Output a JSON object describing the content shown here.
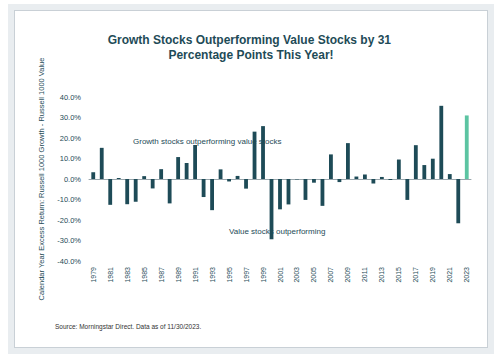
{
  "chart_data": {
    "type": "bar",
    "title": "Growth Stocks Outperforming Value Stocks by 31 Percentage Points This Year!",
    "y_label": "Calendar Year Excess Return: Russell 1000 Growth - Russell 1000 Value",
    "annotations": [
      "Growth stocks outperforming value stocks",
      "Value stocks outperforming"
    ],
    "source": "Source: Morningstar Direct. Data as of 11/30/2023.",
    "categories": [
      "1979",
      null,
      "1981",
      null,
      "1983",
      null,
      "1985",
      null,
      "1987",
      null,
      "1989",
      null,
      "1991",
      null,
      "1993",
      null,
      "1995",
      null,
      "1997",
      null,
      "1999",
      null,
      "2001",
      null,
      "2003",
      null,
      "2005",
      null,
      "2007",
      null,
      "2009",
      null,
      "2011",
      null,
      "2013",
      null,
      "2015",
      null,
      "2017",
      null,
      "2019",
      null,
      "2021",
      null,
      "2023"
    ],
    "values": [
      3.3,
      15.2,
      -12.6,
      0.5,
      -12.3,
      -11.1,
      1.4,
      -4.6,
      4.8,
      -11.9,
      10.7,
      7.8,
      16.6,
      -8.8,
      -15.2,
      4.7,
      -1.2,
      1.5,
      -4.7,
      23.1,
      25.8,
      -29.4,
      -14.8,
      -12.4,
      -0.2,
      -10.2,
      -1.8,
      -13.1,
      12.0,
      -1.5,
      17.5,
      1.2,
      2.2,
      -2.2,
      1.0,
      -0.5,
      9.5,
      -10.2,
      16.5,
      6.8,
      9.9,
      35.7,
      2.4,
      -21.6,
      31.0
    ],
    "colors": [
      "#1e4b57",
      "#1e4b57",
      "#1e4b57",
      "#1e4b57",
      "#1e4b57",
      "#1e4b57",
      "#1e4b57",
      "#1e4b57",
      "#1e4b57",
      "#1e4b57",
      "#1e4b57",
      "#1e4b57",
      "#1e4b57",
      "#1e4b57",
      "#1e4b57",
      "#1e4b57",
      "#1e4b57",
      "#1e4b57",
      "#1e4b57",
      "#1e4b57",
      "#1e4b57",
      "#1e4b57",
      "#1e4b57",
      "#1e4b57",
      "#1e4b57",
      "#1e4b57",
      "#1e4b57",
      "#1e4b57",
      "#1e4b57",
      "#1e4b57",
      "#1e4b57",
      "#1e4b57",
      "#1e4b57",
      "#1e4b57",
      "#1e4b57",
      "#1e4b57",
      "#1e4b57",
      "#1e4b57",
      "#1e4b57",
      "#1e4b57",
      "#1e4b57",
      "#1e4b57",
      "#1e4b57",
      "#1e4b57",
      "#5cc4a2"
    ],
    "ylim": [
      -40,
      40
    ],
    "yticks": [
      {
        "value": -40,
        "label": "-40.0%"
      },
      {
        "value": -30,
        "label": "-30.0%"
      },
      {
        "value": -20,
        "label": "-20.0%"
      },
      {
        "value": -10,
        "label": "-10.0%"
      },
      {
        "value": 0,
        "label": "0.0%"
      },
      {
        "value": 10,
        "label": "10.0%"
      },
      {
        "value": 20,
        "label": "20.0%"
      },
      {
        "value": 30,
        "label": "30.0%"
      },
      {
        "value": 40,
        "label": "40.0%"
      }
    ],
    "grid": false
  }
}
